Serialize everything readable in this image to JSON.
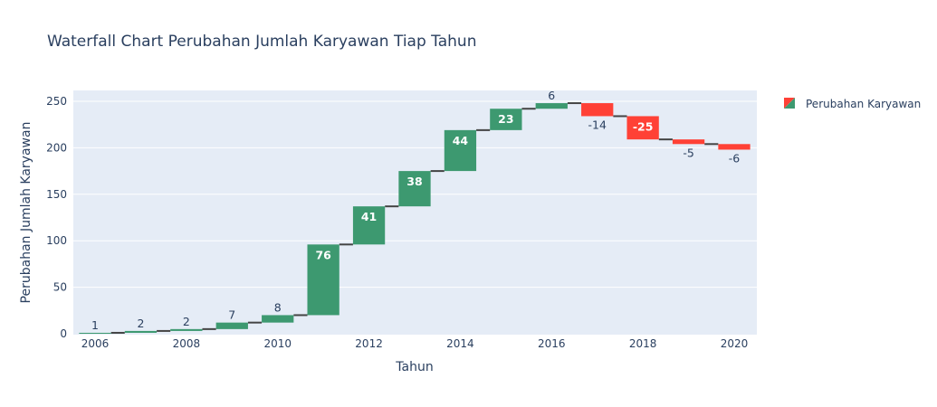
{
  "chart_data": {
    "type": "waterfall",
    "title": "Waterfall Chart Perubahan Jumlah Karyawan Tiap Tahun",
    "xlabel": "Tahun",
    "ylabel": "Perubahan Jumlah Karyawan",
    "x": [
      2006,
      2007,
      2008,
      2009,
      2010,
      2011,
      2012,
      2013,
      2014,
      2015,
      2016,
      2017,
      2018,
      2019,
      2020
    ],
    "xticks": [
      "2006",
      "2008",
      "2010",
      "2012",
      "2014",
      "2016",
      "2018",
      "2020"
    ],
    "yticks": [
      "0",
      "50",
      "100",
      "150",
      "200",
      "250"
    ],
    "ylim": [
      0,
      260
    ],
    "series": [
      {
        "name": "Perubahan Karyawan",
        "values": [
          1,
          2,
          2,
          7,
          8,
          76,
          41,
          38,
          44,
          23,
          6,
          -14,
          -25,
          -5,
          -6
        ]
      }
    ],
    "colors": {
      "increase": "#3d9970",
      "decrease": "#ff4136",
      "connector": "#444444",
      "plot_bg": "#e5ecf6",
      "grid": "#ffffff"
    },
    "legend_position": "top-right",
    "grid": true
  }
}
